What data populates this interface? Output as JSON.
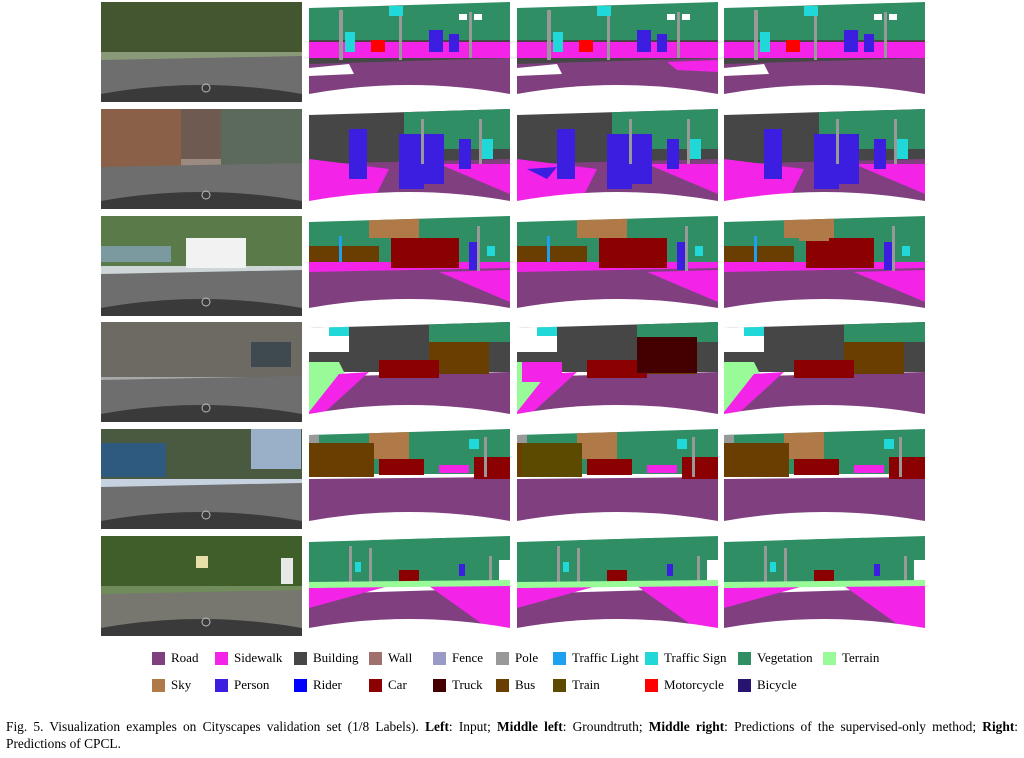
{
  "legend": [
    {
      "label": "Road",
      "color": "#804080"
    },
    {
      "label": "Sidewalk",
      "color": "#f423e8"
    },
    {
      "label": "Building",
      "color": "#464646"
    },
    {
      "label": "Wall",
      "color": "#a0706c"
    },
    {
      "label": "Fence",
      "color": "#9a9ac6"
    },
    {
      "label": "Pole",
      "color": "#999999"
    },
    {
      "label": "Traffic Light",
      "color": "#1ea0f0"
    },
    {
      "label": "Traffic Sign",
      "color": "#20d8d8"
    },
    {
      "label": "Vegetation",
      "color": "#2f8e64"
    },
    {
      "label": "Terrain",
      "color": "#98fb98"
    },
    {
      "label": "Sky",
      "color": "#b07a48"
    },
    {
      "label": "Person",
      "color": "#3c1ee0"
    },
    {
      "label": "Rider",
      "color": "#0000ff"
    },
    {
      "label": "Car",
      "color": "#8b0000"
    },
    {
      "label": "Truck",
      "color": "#440000"
    },
    {
      "label": "Bus",
      "color": "#6a3e00"
    },
    {
      "label": "Train",
      "color": "#5c4a00"
    },
    {
      "label": "Motorcycle",
      "color": "#ff0000"
    },
    {
      "label": "Bicycle",
      "color": "#281470"
    }
  ],
  "caption": {
    "fig": "Fig. 5.",
    "text1": " Visualization examples on Cityscapes validation set (1/8 Labels). ",
    "left_b": "Left",
    "left_t": ": Input; ",
    "ml_b": "Middle left",
    "ml_t": ": Groundtruth; ",
    "mr_b": "Middle right",
    "mr_t": ": Predictions of the supervised-only method; ",
    "right_b": "Right",
    "right_t": ": Predictions of CPCL."
  },
  "rows": [
    {
      "scene": "street-plaza"
    },
    {
      "scene": "pedestrian-crossing"
    },
    {
      "scene": "white-van"
    },
    {
      "scene": "parked-cars-bus"
    },
    {
      "scene": "bus-intersection"
    },
    {
      "scene": "tree-lined-road"
    }
  ]
}
